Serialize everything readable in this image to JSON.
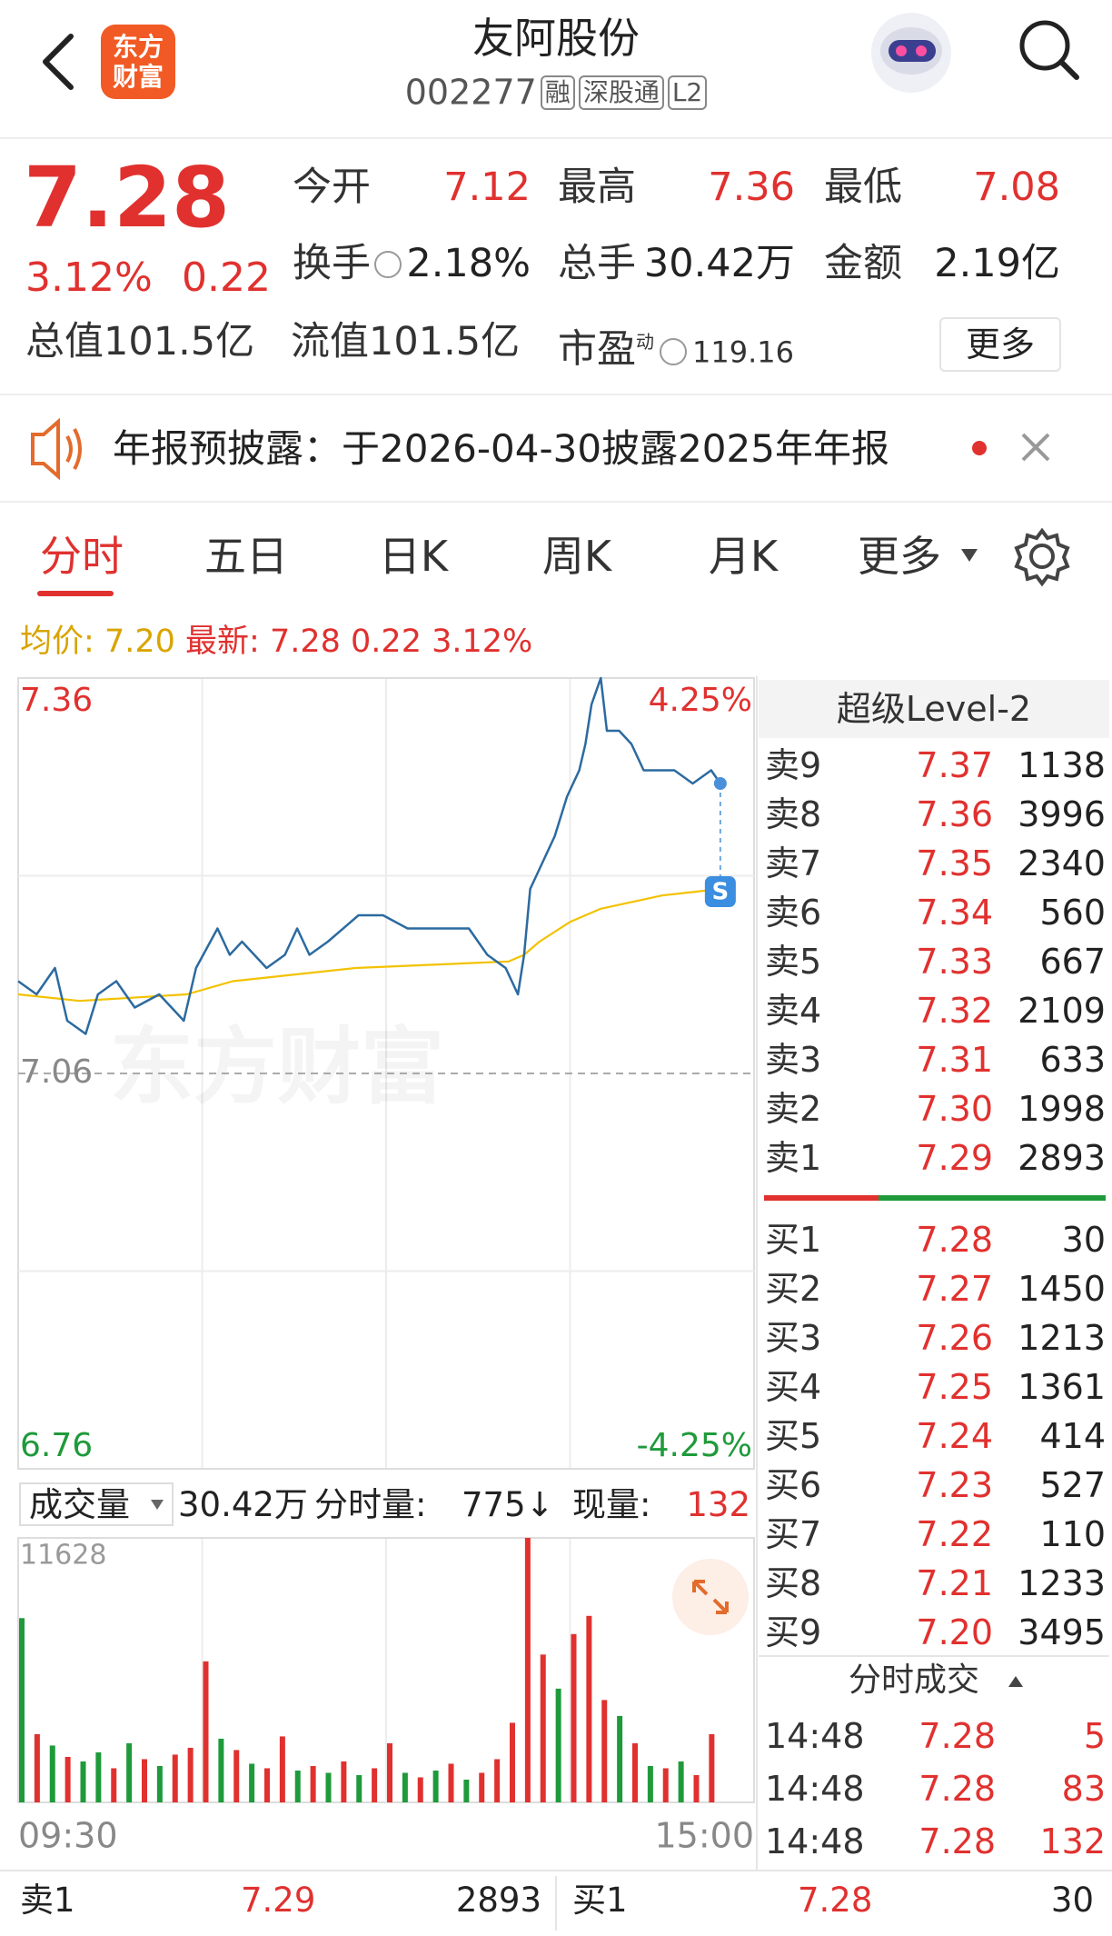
{
  "header": {
    "title": "友阿股份",
    "code": "002277",
    "tags": [
      "融",
      "深股通",
      "L2"
    ],
    "logo": [
      "东方",
      "财富"
    ]
  },
  "quote": {
    "price": "7.28",
    "change_pct": "3.12%",
    "change": "0.22",
    "stats": [
      {
        "label": "今开",
        "value": "7.12"
      },
      {
        "label": "最高",
        "value": "7.36"
      },
      {
        "label": "最低",
        "value": "7.08"
      },
      {
        "label": "换手",
        "value": "2.18%"
      },
      {
        "label": "总手",
        "value": "30.42万"
      },
      {
        "label": "金额",
        "value": "2.19亿"
      }
    ],
    "market_cap": {
      "label": "总值",
      "value": "101.5亿"
    },
    "float_cap": {
      "label": "流值",
      "value": "101.5亿"
    },
    "pe": {
      "label": "市盈",
      "mark": "动",
      "value": "119.16"
    },
    "more": "更多"
  },
  "notice": "年报预披露：于2026-04-30披露2025年年报",
  "tabs": [
    "分时",
    "五日",
    "日K",
    "周K",
    "月K",
    "更多"
  ],
  "summary": {
    "avg_label": "均价:",
    "avg": "7.20",
    "latest_label": "最新:",
    "latest": "7.28",
    "change": "0.22",
    "pct": "3.12%"
  },
  "chart_data": [
    {
      "type": "line",
      "watermark": "东方财富",
      "xlim": [
        0,
        240
      ],
      "ylim": [
        6.76,
        7.36
      ],
      "yticks": [
        6.76,
        7.06,
        7.36
      ],
      "y2lim": [
        -4.25,
        4.25
      ],
      "y2ticks": [
        {
          "value": 4.25,
          "label": "4.25%"
        },
        {
          "value": -4.25,
          "label": "-4.25%"
        }
      ],
      "grid": true,
      "series": [
        {
          "color": "#2c6aa0",
          "x": [
            0,
            6,
            12,
            16,
            22,
            26,
            32,
            38,
            46,
            54,
            58,
            65,
            69,
            73,
            77,
            81,
            87,
            91,
            95,
            101,
            111,
            119,
            127,
            135,
            147,
            153,
            159,
            163,
            165,
            167,
            171,
            175,
            179,
            183,
            185,
            187,
            190,
            192,
            196,
            200,
            204,
            208,
            214,
            220,
            226,
            229
          ],
          "values": [
            7.13,
            7.12,
            7.14,
            7.1,
            7.09,
            7.12,
            7.13,
            7.11,
            7.12,
            7.1,
            7.14,
            7.17,
            7.15,
            7.16,
            7.15,
            7.14,
            7.15,
            7.17,
            7.15,
            7.16,
            7.18,
            7.18,
            7.17,
            7.17,
            7.17,
            7.15,
            7.14,
            7.12,
            7.15,
            7.2,
            7.22,
            7.24,
            7.27,
            7.29,
            7.31,
            7.34,
            7.36,
            7.32,
            7.32,
            7.31,
            7.29,
            7.29,
            7.29,
            7.28,
            7.29,
            7.28
          ]
        },
        {
          "color": "#f2c200",
          "x": [
            0,
            20,
            55,
            70,
            110,
            160,
            165,
            170,
            180,
            190,
            210,
            229
          ],
          "values": [
            7.12,
            7.115,
            7.12,
            7.13,
            7.14,
            7.145,
            7.15,
            7.16,
            7.175,
            7.185,
            7.195,
            7.2
          ]
        }
      ]
    },
    {
      "type": "bar",
      "xlim": [
        0,
        240
      ],
      "xticks": [
        {
          "value": 0,
          "label": "09:30"
        },
        {
          "value": 240,
          "label": "15:00"
        }
      ],
      "ylim": [
        0,
        11628
      ],
      "yticks": [
        11628
      ],
      "x": [
        0,
        5,
        10,
        15,
        20,
        25,
        30,
        35,
        40,
        45,
        50,
        55,
        60,
        65,
        70,
        75,
        80,
        85,
        90,
        95,
        100,
        105,
        110,
        115,
        120,
        125,
        130,
        135,
        140,
        145,
        150,
        155,
        160,
        165,
        170,
        175,
        180,
        185,
        190,
        195,
        200,
        205,
        210,
        215,
        220,
        225
      ],
      "values": [
        8100,
        3000,
        2500,
        2000,
        1800,
        2200,
        1500,
        2600,
        1900,
        1600,
        2100,
        2400,
        6200,
        2800,
        2300,
        1700,
        1500,
        2900,
        1400,
        1600,
        1300,
        1800,
        1200,
        1500,
        2600,
        1300,
        1100,
        1400,
        1700,
        1000,
        1300,
        1900,
        3500,
        11628,
        6500,
        5000,
        7400,
        8200,
        4500,
        3800,
        2600,
        1600,
        1500,
        1800,
        1200,
        3000
      ],
      "colors": [
        "#1f9a3b",
        "#e0312f",
        "#1f9a3b",
        "#e0312f",
        "#1f9a3b",
        "#1f9a3b",
        "#e0312f",
        "#1f9a3b",
        "#e0312f",
        "#1f9a3b",
        "#e0312f",
        "#e0312f",
        "#e0312f",
        "#1f9a3b",
        "#e0312f",
        "#1f9a3b",
        "#e0312f",
        "#e0312f",
        "#1f9a3b",
        "#e0312f",
        "#1f9a3b",
        "#e0312f",
        "#1f9a3b",
        "#e0312f",
        "#e0312f",
        "#1f9a3b",
        "#e0312f",
        "#1f9a3b",
        "#e0312f",
        "#1f9a3b",
        "#e0312f",
        "#e0312f",
        "#e0312f",
        "#e0312f",
        "#e0312f",
        "#1f9a3b",
        "#e0312f",
        "#e0312f",
        "#e0312f",
        "#1f9a3b",
        "#e0312f",
        "#1f9a3b",
        "#e0312f",
        "#1f9a3b",
        "#e0312f",
        "#e0312f"
      ]
    }
  ],
  "volume_header": {
    "label": "成交量",
    "total": "30.42万",
    "period_label": "分时量:",
    "period": "775↓",
    "current_label": "现量:",
    "current": "132"
  },
  "order_book": {
    "title": "超级Level-2",
    "asks": [
      {
        "label": "卖9",
        "price": "7.37",
        "volume": "1138"
      },
      {
        "label": "卖8",
        "price": "7.36",
        "volume": "3996"
      },
      {
        "label": "卖7",
        "price": "7.35",
        "volume": "2340"
      },
      {
        "label": "卖6",
        "price": "7.34",
        "volume": "560"
      },
      {
        "label": "卖5",
        "price": "7.33",
        "volume": "667"
      },
      {
        "label": "卖4",
        "price": "7.32",
        "volume": "2109"
      },
      {
        "label": "卖3",
        "price": "7.31",
        "volume": "633"
      },
      {
        "label": "卖2",
        "price": "7.30",
        "volume": "1998"
      },
      {
        "label": "卖1",
        "price": "7.29",
        "volume": "2893"
      }
    ],
    "bids": [
      {
        "label": "买1",
        "price": "7.28",
        "volume": "30"
      },
      {
        "label": "买2",
        "price": "7.27",
        "volume": "1450"
      },
      {
        "label": "买3",
        "price": "7.26",
        "volume": "1213"
      },
      {
        "label": "买4",
        "price": "7.25",
        "volume": "1361"
      },
      {
        "label": "买5",
        "price": "7.24",
        "volume": "414"
      },
      {
        "label": "买6",
        "price": "7.23",
        "volume": "527"
      },
      {
        "label": "买7",
        "price": "7.22",
        "volume": "110"
      },
      {
        "label": "买8",
        "price": "7.21",
        "volume": "1233"
      },
      {
        "label": "买9",
        "price": "7.20",
        "volume": "3495"
      }
    ]
  },
  "trades": {
    "title": "分时成交",
    "rows": [
      {
        "time": "14:48",
        "price": "7.28",
        "volume": "5"
      },
      {
        "time": "14:48",
        "price": "7.28",
        "volume": "83"
      },
      {
        "time": "14:48",
        "price": "7.28",
        "volume": "132"
      }
    ]
  },
  "footer": {
    "ask": {
      "label": "卖1",
      "price": "7.29",
      "volume": "2893"
    },
    "bid": {
      "label": "买1",
      "price": "7.28",
      "volume": "30"
    }
  }
}
